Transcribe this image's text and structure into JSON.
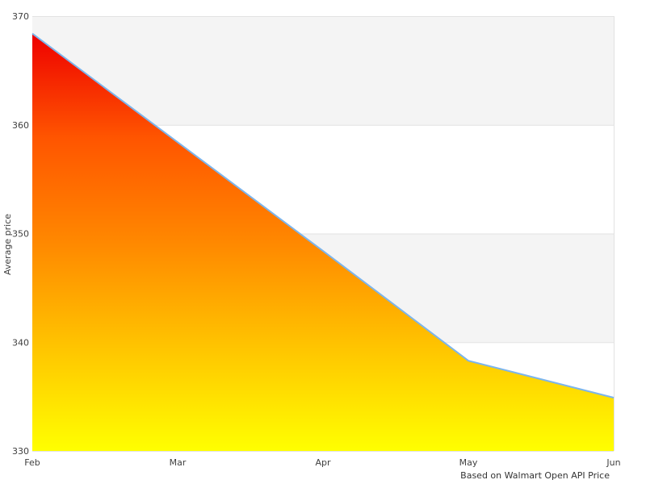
{
  "chart": {
    "ylabel": "Average price",
    "caption": "Based on Walmart Open API Price"
  },
  "chart_data": {
    "type": "area",
    "title": "",
    "xlabel": "",
    "ylabel": "Average price",
    "caption": "Based on Walmart Open API Price",
    "categories": [
      "Feb",
      "Mar",
      "Apr",
      "May",
      "Jun"
    ],
    "values": [
      368.4,
      358.4,
      348.4,
      338.3,
      334.9
    ],
    "ylim": [
      330,
      370
    ],
    "yticks": [
      330,
      340,
      350,
      360,
      370
    ],
    "grid": true,
    "legend": "none",
    "alternate_band_color": "#f4f4f4",
    "gridline_color": "#e2e2e2",
    "line_color": "#7cb5ec",
    "line_width": 2,
    "area_gradient": [
      "#ee0000",
      "#ff5500",
      "#ff8800",
      "#ffc400",
      "#ffff00"
    ],
    "tick_text_color": "#404040",
    "background_color": "#ffffff"
  }
}
